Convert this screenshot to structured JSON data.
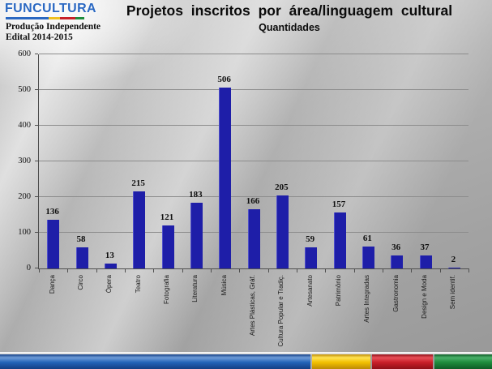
{
  "logo": {
    "name": "FUNCULTURA",
    "line1": "Produção Independente",
    "line2": "Edital 2014-2015",
    "stripe": [
      {
        "name": "stripe-blue",
        "color": "#2a68c2",
        "width_pct": 55
      },
      {
        "name": "stripe-yellow",
        "color": "#f0c020",
        "width_pct": 14
      },
      {
        "name": "stripe-red",
        "color": "#c82028",
        "width_pct": 20
      },
      {
        "name": "stripe-green",
        "color": "#1e8c3c",
        "width_pct": 11
      }
    ]
  },
  "header": {
    "title": "Projetos inscritos por área/linguagem cultural",
    "subtitle": "Quantidades"
  },
  "chart_data": {
    "type": "bar",
    "title": "Projetos inscritos por área/linguagem cultural",
    "subtitle": "Quantidades",
    "categories": [
      "Dança",
      "Circo",
      "Ópera",
      "Teatro",
      "Fotografia",
      "Literatura",
      "Música",
      "Artes Plásticas, Gráf.",
      "Cultura Popular e Tradiç.",
      "Artesanato",
      "Patrimônio",
      "Artes Integradas",
      "Gastronomia",
      "Design e Moda",
      "Sem identif."
    ],
    "values": [
      136,
      58,
      13,
      215,
      121,
      183,
      506,
      166,
      205,
      59,
      157,
      61,
      36,
      37,
      2
    ],
    "ylim": [
      0,
      600
    ],
    "yticks": [
      0,
      100,
      200,
      300,
      400,
      500,
      600
    ],
    "ytick_step": 100,
    "grid": true,
    "legend": "none",
    "data_labels": true,
    "bar_color": "#1e1ea8"
  },
  "footer": {
    "segments": [
      {
        "name": "footer-blue",
        "light": "#6f9cd8",
        "main": "#2263b8",
        "dark": "#143f84",
        "width_pct": 63.8
      },
      {
        "name": "footer-yellow",
        "light": "#ffe354",
        "main": "#f2c000",
        "dark": "#bd8a06",
        "width_pct": 11.9
      },
      {
        "name": "footer-red",
        "light": "#e85058",
        "main": "#c81e28",
        "dark": "#8f0f17",
        "width_pct": 12.4
      },
      {
        "name": "footer-green",
        "light": "#4ab06a",
        "main": "#1e8c3c",
        "dark": "#0e5c26",
        "width_pct": 11.9
      }
    ]
  }
}
